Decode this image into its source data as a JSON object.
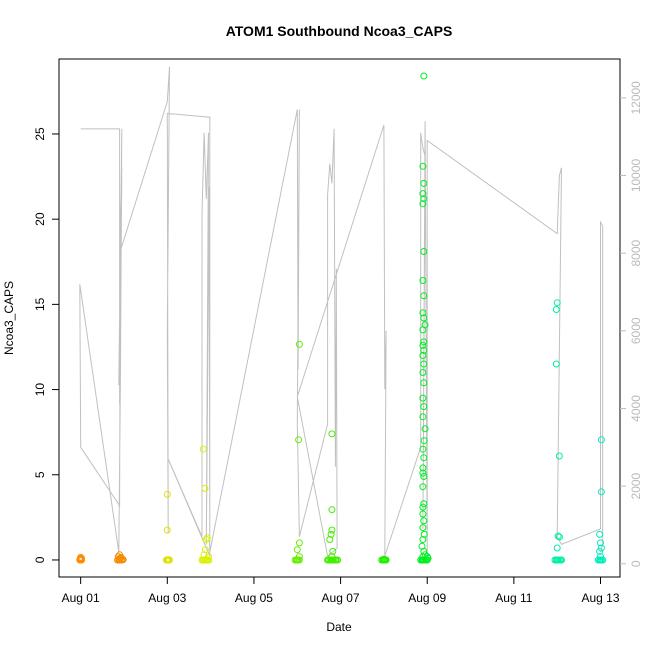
{
  "chart_data": {
    "type": "scatter",
    "title": "ATOM1 Southbound Ncoa3_CAPS",
    "xlabel": "Date",
    "ylabel": "Ncoa3_CAPS",
    "x_unit": "days (Aug 01 = 0)",
    "x_ticks": [
      {
        "value": 0,
        "label": "Aug 01"
      },
      {
        "value": 2,
        "label": "Aug 03"
      },
      {
        "value": 4,
        "label": "Aug 05"
      },
      {
        "value": 6,
        "label": "Aug 07"
      },
      {
        "value": 8,
        "label": "Aug 09"
      },
      {
        "value": 10,
        "label": "Aug 11"
      },
      {
        "value": 12,
        "label": "Aug 13"
      }
    ],
    "xlim": [
      -0.5,
      12.45
    ],
    "ylim": [
      -1.0,
      29.4
    ],
    "y_ticks": [
      0,
      5,
      10,
      15,
      20,
      25
    ],
    "y2_ticks": [
      0,
      2000,
      4000,
      6000,
      8000,
      10000,
      12000
    ],
    "y2lim": [
      -340,
      13000
    ],
    "grid": false,
    "secondary_series": {
      "name": "",
      "color": "#c0c0c0",
      "points": [
        [
          0.0,
          11200
        ],
        [
          0.0,
          11200
        ],
        [
          0.9,
          11200
        ],
        [
          0.9,
          4100
        ],
        [
          0.95,
          10000
        ],
        [
          0.88,
          4600
        ],
        [
          0.95,
          11200
        ],
        [
          0.92,
          5000
        ],
        [
          0.88,
          300
        ],
        [
          -0.02,
          7200
        ],
        [
          0.0,
          3000
        ],
        [
          0.9,
          1500
        ],
        [
          0.92,
          9000
        ],
        [
          0.95,
          10200
        ],
        [
          0.9,
          8000
        ],
        [
          2.0,
          11900
        ],
        [
          2.05,
          12800
        ],
        [
          2.0,
          6000
        ],
        [
          2.02,
          800
        ],
        [
          2.0,
          11600
        ],
        [
          2.98,
          11500
        ],
        [
          2.98,
          200
        ],
        [
          2.02,
          2700
        ],
        [
          2.8,
          700
        ],
        [
          2.8,
          9000
        ],
        [
          2.85,
          11100
        ],
        [
          2.9,
          9400
        ],
        [
          2.95,
          11100
        ],
        [
          2.9,
          500
        ],
        [
          2.97,
          9700
        ],
        [
          2.98,
          300
        ],
        [
          5.0,
          11700
        ],
        [
          5.02,
          5000
        ],
        [
          5.05,
          11700
        ],
        [
          5.0,
          3600
        ],
        [
          5.05,
          700
        ],
        [
          5.7,
          3600
        ],
        [
          5.7,
          9500
        ],
        [
          5.75,
          10300
        ],
        [
          5.8,
          9800
        ],
        [
          5.85,
          11200
        ],
        [
          5.88,
          2500
        ],
        [
          5.9,
          7600
        ],
        [
          5.92,
          400
        ],
        [
          5.7,
          200
        ],
        [
          5.0,
          4300
        ],
        [
          7.0,
          11300
        ],
        [
          7.02,
          4500
        ],
        [
          7.05,
          6000
        ],
        [
          7.02,
          200
        ],
        [
          7.85,
          3000
        ],
        [
          7.85,
          11100
        ],
        [
          7.9,
          10700
        ],
        [
          7.95,
          10500
        ],
        [
          7.9,
          900
        ],
        [
          7.95,
          11400
        ],
        [
          8.0,
          200
        ],
        [
          8.0,
          10900
        ],
        [
          11.0,
          8500
        ],
        [
          11.05,
          10000
        ],
        [
          11.1,
          10200
        ],
        [
          11.0,
          700
        ],
        [
          11.1,
          500
        ],
        [
          12.0,
          900
        ],
        [
          12.0,
          8800
        ],
        [
          12.05,
          8700
        ],
        [
          12.05,
          500
        ],
        [
          12.0,
          300
        ]
      ]
    },
    "series": [
      {
        "name": "",
        "color": "#ff8c00",
        "points": [
          [
            -0.02,
            0.0
          ],
          [
            0.0,
            0.05
          ],
          [
            0.02,
            0.1
          ],
          [
            0.0,
            0.0
          ],
          [
            0.01,
            0.02
          ],
          [
            -0.01,
            0.08
          ],
          [
            0.02,
            0.0
          ],
          [
            0.0,
            0.15
          ]
        ]
      },
      {
        "name": "",
        "color": "#f28c00",
        "points": [
          [
            0.85,
            0.0
          ],
          [
            0.88,
            0.0
          ],
          [
            0.9,
            0.05
          ],
          [
            0.92,
            0.1
          ],
          [
            0.95,
            0.0
          ],
          [
            0.98,
            0.02
          ],
          [
            0.87,
            0.2
          ],
          [
            0.93,
            0.15
          ],
          [
            0.9,
            0.3
          ],
          [
            0.96,
            0.05
          ],
          [
            0.88,
            0.0
          ],
          [
            0.91,
            0.0
          ]
        ]
      },
      {
        "name": "",
        "color": "#e1e000",
        "points": [
          [
            1.98,
            0.0
          ],
          [
            2.0,
            0.0
          ],
          [
            2.02,
            0.0
          ],
          [
            2.05,
            0.0
          ],
          [
            2.0,
            1.75
          ],
          [
            2.0,
            3.85
          ],
          [
            2.02,
            0.02
          ]
        ]
      },
      {
        "name": "",
        "color": "#d9f000",
        "points": [
          [
            2.8,
            0.0
          ],
          [
            2.83,
            0.0
          ],
          [
            2.85,
            0.0
          ],
          [
            2.88,
            0.0
          ],
          [
            2.9,
            0.0
          ],
          [
            2.93,
            0.0
          ],
          [
            2.96,
            0.0
          ],
          [
            2.85,
            0.3
          ],
          [
            2.88,
            0.6
          ],
          [
            2.9,
            1.2
          ],
          [
            2.87,
            4.2
          ],
          [
            2.83,
            6.5
          ],
          [
            2.92,
            1.3
          ],
          [
            2.95,
            0.2
          ]
        ]
      },
      {
        "name": "",
        "color": "#66ee00",
        "points": [
          [
            4.95,
            0.0
          ],
          [
            4.98,
            0.0
          ],
          [
            5.0,
            0.0
          ],
          [
            5.02,
            0.0
          ],
          [
            5.05,
            0.0
          ],
          [
            5.05,
            0.2
          ],
          [
            5.0,
            0.6
          ],
          [
            5.05,
            1.0
          ],
          [
            5.03,
            7.05
          ],
          [
            5.05,
            12.65
          ]
        ]
      },
      {
        "name": "",
        "color": "#44ee00",
        "points": [
          [
            5.7,
            0.0
          ],
          [
            5.72,
            0.0
          ],
          [
            5.75,
            0.0
          ],
          [
            5.78,
            0.0
          ],
          [
            5.8,
            0.0
          ],
          [
            5.82,
            0.0
          ],
          [
            5.85,
            0.0
          ],
          [
            5.88,
            0.0
          ],
          [
            5.9,
            0.0
          ],
          [
            5.93,
            0.0
          ],
          [
            5.8,
            0.2
          ],
          [
            5.82,
            0.5
          ],
          [
            5.78,
            1.5
          ],
          [
            5.8,
            1.75
          ],
          [
            5.75,
            1.2
          ],
          [
            5.8,
            2.95
          ],
          [
            5.8,
            7.4
          ]
        ]
      },
      {
        "name": "",
        "color": "#22ee00",
        "points": [
          [
            6.95,
            0.0
          ],
          [
            6.98,
            0.0
          ],
          [
            7.0,
            0.0
          ],
          [
            7.02,
            0.0
          ],
          [
            7.05,
            0.0
          ],
          [
            7.0,
            0.05
          ],
          [
            7.03,
            0.02
          ]
        ]
      },
      {
        "name": "",
        "color": "#00ee22",
        "points": [
          [
            7.85,
            0.0
          ],
          [
            7.88,
            0.0
          ],
          [
            7.9,
            0.0
          ],
          [
            7.92,
            0.0
          ],
          [
            7.95,
            0.0
          ],
          [
            7.98,
            0.0
          ],
          [
            8.0,
            0.0
          ],
          [
            8.02,
            0.1
          ],
          [
            7.9,
            0.2
          ],
          [
            7.92,
            0.5
          ],
          [
            7.88,
            0.8
          ],
          [
            7.9,
            1.2
          ],
          [
            7.93,
            1.5
          ],
          [
            7.9,
            1.9
          ],
          [
            7.92,
            2.3
          ],
          [
            7.9,
            2.7
          ],
          [
            7.9,
            3.1
          ],
          [
            7.92,
            3.3
          ],
          [
            7.9,
            4.3
          ],
          [
            7.92,
            4.9
          ],
          [
            7.9,
            5.1
          ],
          [
            7.9,
            5.4
          ],
          [
            7.92,
            6.0
          ],
          [
            7.9,
            6.5
          ],
          [
            7.93,
            7.0
          ],
          [
            7.95,
            7.7
          ],
          [
            7.9,
            8.4
          ],
          [
            7.92,
            9.0
          ],
          [
            7.9,
            9.5
          ],
          [
            7.92,
            10.4
          ],
          [
            7.9,
            11.0
          ],
          [
            7.92,
            11.5
          ],
          [
            7.9,
            12.0
          ],
          [
            7.92,
            12.3
          ],
          [
            7.9,
            12.6
          ],
          [
            7.92,
            12.8
          ],
          [
            7.9,
            13.5
          ],
          [
            7.95,
            13.8
          ],
          [
            7.92,
            14.2
          ],
          [
            7.9,
            14.5
          ],
          [
            7.92,
            15.5
          ],
          [
            7.9,
            16.4
          ],
          [
            7.92,
            18.1
          ],
          [
            7.9,
            20.9
          ],
          [
            7.92,
            21.2
          ],
          [
            7.9,
            21.5
          ],
          [
            7.92,
            22.1
          ],
          [
            7.9,
            23.1
          ],
          [
            7.92,
            28.4
          ],
          [
            7.95,
            0.3
          ],
          [
            8.0,
            0.2
          ]
        ]
      },
      {
        "name": "",
        "color": "#00eea8",
        "points": [
          [
            10.95,
            0.0
          ],
          [
            10.98,
            0.0
          ],
          [
            11.0,
            0.0
          ],
          [
            11.02,
            0.0
          ],
          [
            11.05,
            0.0
          ],
          [
            11.08,
            0.0
          ],
          [
            11.1,
            0.0
          ],
          [
            11.0,
            0.7
          ],
          [
            11.02,
            1.4
          ],
          [
            11.05,
            1.35
          ],
          [
            11.05,
            6.1
          ],
          [
            10.98,
            11.5
          ],
          [
            10.98,
            14.7
          ],
          [
            11.0,
            15.1
          ]
        ]
      },
      {
        "name": "",
        "color": "#00eebb",
        "points": [
          [
            11.95,
            0.0
          ],
          [
            11.98,
            0.0
          ],
          [
            12.0,
            0.0
          ],
          [
            12.02,
            0.0
          ],
          [
            12.05,
            0.0
          ],
          [
            12.0,
            0.2
          ],
          [
            11.98,
            0.5
          ],
          [
            12.02,
            0.7
          ],
          [
            12.0,
            1.0
          ],
          [
            11.98,
            1.5
          ],
          [
            12.02,
            4.0
          ],
          [
            12.02,
            7.05
          ]
        ]
      }
    ]
  }
}
